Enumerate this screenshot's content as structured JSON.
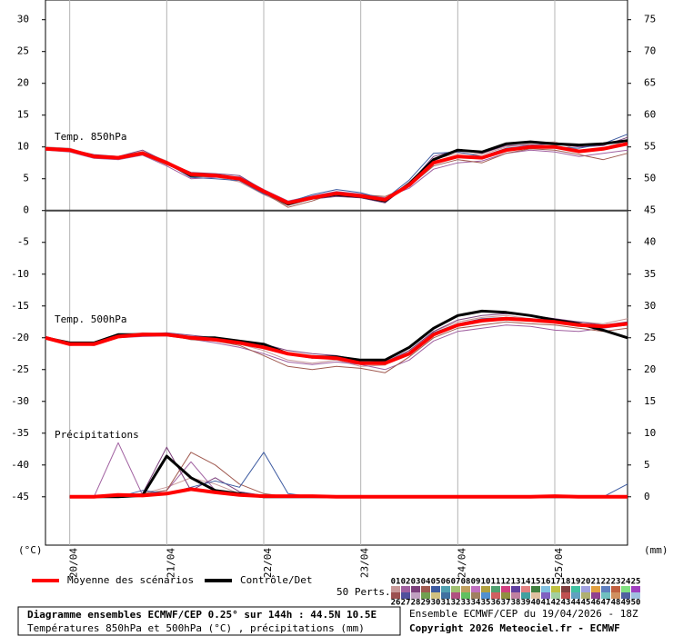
{
  "chart_data": {
    "type": "line",
    "title": "Diagramme ensembles ECMWF/CEP 0.25° sur 144h : 44.5N 10.5E",
    "subtitle": "Températures 850hPa et 500hPa (°C) , précipitations (mm)",
    "source": "Ensemble ECMWF/CEP du 19/04/2026 - 18Z",
    "copyright": "Copyright 2026 Meteociel.fr - ECMWF",
    "y_label": "(°C)",
    "y2_label": "(mm)",
    "x": [
      -0.25,
      0,
      0.25,
      0.5,
      0.75,
      1,
      1.25,
      1.5,
      1.75,
      2,
      2.25,
      2.5,
      2.75,
      3,
      3.25,
      3.5,
      3.75,
      4,
      4.25,
      4.5,
      4.75,
      5,
      5.25,
      5.5,
      5.75
    ],
    "xlim": [
      -0.25,
      5.75
    ],
    "xticks": [
      {
        "value": 0,
        "label": "20/04"
      },
      {
        "value": 1,
        "label": "21/04"
      },
      {
        "value": 2,
        "label": "22/04"
      },
      {
        "value": 3,
        "label": "23/04"
      },
      {
        "value": 4,
        "label": "24/04"
      },
      {
        "value": 5,
        "label": "25/04"
      }
    ],
    "ylim": [
      -52.6,
      33.1
    ],
    "yticks": [
      30,
      25,
      20,
      15,
      10,
      5,
      0,
      -5,
      -10,
      -15,
      -20,
      -25,
      -30,
      -35,
      -40,
      -45
    ],
    "y2lim": [
      -7.6,
      78.1
    ],
    "y2ticks": [
      75,
      70,
      65,
      60,
      55,
      50,
      45,
      40,
      35,
      30,
      25,
      20,
      15,
      10,
      5,
      0
    ],
    "xgrid": true,
    "legend": [
      {
        "name": "Moyenne des scénarios",
        "color": "#ff0000"
      },
      {
        "name": "Contrôle/Det",
        "color": "#000000"
      }
    ],
    "members_label": "50 Perts.",
    "members": [
      {
        "name": "01",
        "color": "#c89898"
      },
      {
        "name": "02",
        "color": "#a060a0"
      },
      {
        "name": "03",
        "color": "#7b3f7b"
      },
      {
        "name": "04",
        "color": "#a05a50"
      },
      {
        "name": "05",
        "color": "#3c5aa0"
      },
      {
        "name": "06",
        "color": "#50a0b0"
      },
      {
        "name": "07",
        "color": "#a0c070"
      },
      {
        "name": "08",
        "color": "#c0a060"
      },
      {
        "name": "09",
        "color": "#c070c0"
      },
      {
        "name": "10",
        "color": "#b0a040"
      },
      {
        "name": "11",
        "color": "#50a070"
      },
      {
        "name": "12",
        "color": "#d04080"
      },
      {
        "name": "13",
        "color": "#6040a0"
      },
      {
        "name": "14",
        "color": "#e08080"
      },
      {
        "name": "15",
        "color": "#408040"
      },
      {
        "name": "16",
        "color": "#80c0e0"
      },
      {
        "name": "17",
        "color": "#c0c040"
      },
      {
        "name": "18",
        "color": "#804040"
      },
      {
        "name": "19",
        "color": "#40c0a0"
      },
      {
        "name": "20",
        "color": "#a0a0e0"
      },
      {
        "name": "21",
        "color": "#e0a040"
      },
      {
        "name": "22",
        "color": "#6080c0"
      },
      {
        "name": "23",
        "color": "#c06040"
      },
      {
        "name": "24",
        "color": "#80e080"
      },
      {
        "name": "25",
        "color": "#a040c0"
      },
      {
        "name": "26",
        "color": "#9c5050"
      },
      {
        "name": "27",
        "color": "#50509c"
      },
      {
        "name": "28",
        "color": "#c0a0c0"
      },
      {
        "name": "29",
        "color": "#70a050"
      },
      {
        "name": "30",
        "color": "#d0c080"
      },
      {
        "name": "31",
        "color": "#4070a0"
      },
      {
        "name": "32",
        "color": "#b05080"
      },
      {
        "name": "33",
        "color": "#60c060"
      },
      {
        "name": "34",
        "color": "#a08060"
      },
      {
        "name": "35",
        "color": "#5090d0"
      },
      {
        "name": "36",
        "color": "#d06060"
      },
      {
        "name": "37",
        "color": "#909040"
      },
      {
        "name": "38",
        "color": "#c080a0"
      },
      {
        "name": "39",
        "color": "#40a0a0"
      },
      {
        "name": "40",
        "color": "#e0c0a0"
      },
      {
        "name": "41",
        "color": "#8060c0"
      },
      {
        "name": "42",
        "color": "#a0d0a0"
      },
      {
        "name": "43",
        "color": "#c05050"
      },
      {
        "name": "44",
        "color": "#60a0c0"
      },
      {
        "name": "45",
        "color": "#b0b070"
      },
      {
        "name": "46",
        "color": "#904090"
      },
      {
        "name": "47",
        "color": "#70c0c0"
      },
      {
        "name": "48",
        "color": "#d09060"
      },
      {
        "name": "49",
        "color": "#5060a0"
      },
      {
        "name": "50",
        "color": "#a0c0e0"
      }
    ],
    "panels": [
      {
        "label": "Temp. 850hPa",
        "axis": "y",
        "mean": [
          9.7,
          9.5,
          8.5,
          8.3,
          9,
          7.5,
          5.7,
          5.5,
          5,
          3,
          1.2,
          2,
          2.7,
          2.3,
          1.7,
          4,
          7.5,
          8.5,
          8.3,
          9.5,
          10,
          10,
          9.3,
          9.7,
          10.5
        ],
        "control": [
          9.7,
          9.5,
          8.5,
          8.3,
          9,
          7.5,
          5.5,
          5.5,
          5,
          3,
          1,
          2,
          2.5,
          2.2,
          1.5,
          4.2,
          8,
          9.5,
          9.2,
          10.5,
          10.8,
          10.5,
          10.3,
          10.5,
          11
        ],
        "perturbations": [
          [
            10,
            9.8,
            8.6,
            8.5,
            9.3,
            7.8,
            5.5,
            5.3,
            4.5,
            2.5,
            0.8,
            1.8,
            2.5,
            2,
            1.5,
            4.5,
            8,
            9,
            8.8,
            10,
            10.5,
            10.8,
            9.5,
            9.8,
            11
          ],
          [
            9.5,
            9.2,
            8.2,
            8,
            8.7,
            7,
            5,
            5.2,
            5.3,
            3.3,
            1.5,
            2.3,
            3,
            2.6,
            2,
            3.5,
            6.5,
            7.5,
            7.8,
            9,
            9.5,
            9.2,
            8.5,
            9,
            9.5
          ],
          [
            9.8,
            9.6,
            8.8,
            8.5,
            9.5,
            7.6,
            6,
            5.8,
            5.5,
            3.2,
            1,
            1.8,
            2.2,
            2,
            1.2,
            4.2,
            8.5,
            9.5,
            9,
            10.2,
            10.3,
            10.5,
            10,
            10.2,
            11.5
          ],
          [
            9.6,
            9.3,
            8.4,
            8.1,
            8.8,
            7.2,
            5.8,
            5.5,
            4.8,
            2.8,
            0.5,
            1.5,
            2.8,
            2.5,
            2.2,
            3.8,
            7,
            8,
            7.5,
            9,
            9.7,
            9.5,
            8.8,
            8,
            9
          ],
          [
            9.9,
            9.7,
            8.5,
            8.4,
            9.1,
            7.5,
            5.2,
            5,
            4.7,
            2.6,
            1.3,
            2.5,
            3.3,
            2.8,
            1.8,
            4.8,
            9,
            9.2,
            8.5,
            9.8,
            10.2,
            10,
            9.8,
            10.5,
            12
          ]
        ]
      },
      {
        "label": "Temp. 500hPa",
        "axis": "y",
        "mean": [
          -20,
          -21,
          -21,
          -19.8,
          -19.5,
          -19.5,
          -20,
          -20.3,
          -20.8,
          -21.5,
          -22.5,
          -23,
          -23.2,
          -24,
          -24,
          -22.5,
          -19.5,
          -18,
          -17.3,
          -17,
          -17.2,
          -17.5,
          -18,
          -18.2,
          -17.8
        ],
        "control": [
          -20,
          -20.8,
          -20.8,
          -19.5,
          -19.5,
          -19.5,
          -20,
          -20,
          -20.5,
          -21,
          -22.5,
          -23,
          -23,
          -23.5,
          -23.5,
          -21.5,
          -18.5,
          -16.5,
          -15.8,
          -16,
          -16.5,
          -17.2,
          -17.8,
          -18.8,
          -20
        ],
        "perturbations": [
          [
            -20,
            -21.2,
            -21,
            -19.6,
            -19.2,
            -19.3,
            -19.8,
            -20,
            -21,
            -22,
            -23.5,
            -24,
            -23.5,
            -24.5,
            -24.3,
            -22,
            -19,
            -17.5,
            -16.8,
            -16.5,
            -17,
            -17.2,
            -17.5,
            -17.8,
            -17
          ],
          [
            -20.2,
            -21,
            -21.2,
            -20,
            -19.8,
            -19.7,
            -20.2,
            -20.8,
            -21.5,
            -22.5,
            -23.8,
            -24.2,
            -23.8,
            -24.2,
            -25,
            -23.5,
            -20.5,
            -19,
            -18.5,
            -18,
            -18.2,
            -18.8,
            -19,
            -18.5,
            -18
          ],
          [
            -19.8,
            -20.8,
            -20.9,
            -19.7,
            -19.4,
            -19.2,
            -19.6,
            -20,
            -20.4,
            -21,
            -22,
            -22.5,
            -22.8,
            -23.5,
            -23.8,
            -22,
            -19,
            -17.2,
            -16.5,
            -16.2,
            -16.5,
            -17,
            -17.5,
            -18,
            -17.5
          ],
          [
            -20.1,
            -21.1,
            -21,
            -19.9,
            -19.6,
            -19.5,
            -20.3,
            -20.5,
            -21.2,
            -22.8,
            -24.5,
            -25,
            -24.5,
            -24.8,
            -25.5,
            -23,
            -20,
            -18.5,
            -18,
            -17.5,
            -17.8,
            -18,
            -18.5,
            -19,
            -18.5
          ],
          [
            -20,
            -20.9,
            -20.8,
            -19.6,
            -19.5,
            -19.4,
            -19.9,
            -20.2,
            -20.6,
            -21.4,
            -22.6,
            -23.2,
            -23,
            -23.8,
            -24,
            -22.3,
            -19.2,
            -17.8,
            -17,
            -16.8,
            -17,
            -17.3,
            -18,
            -18.2,
            -17.6
          ]
        ]
      },
      {
        "label": "Précipitations",
        "axis": "y2",
        "mean": [
          null,
          0,
          0,
          0.3,
          0.2,
          0.5,
          1.2,
          0.7,
          0.3,
          0.1,
          0.1,
          0.1,
          0,
          0,
          0,
          0,
          0,
          0,
          0,
          0,
          0,
          0.1,
          0,
          0,
          0
        ],
        "control": [
          null,
          0,
          0,
          0,
          0.2,
          6.4,
          3,
          1,
          0.5,
          0,
          0,
          0,
          0,
          0,
          0,
          0,
          0,
          0,
          0,
          0,
          0,
          0,
          0,
          0,
          0
        ],
        "perturbations": [
          [
            null,
            0,
            0,
            0.3,
            0.5,
            1.5,
            3,
            2,
            0.5,
            0.2,
            0,
            0,
            0,
            0,
            0,
            0,
            0,
            0,
            0,
            0,
            0,
            0,
            0,
            0,
            0
          ],
          [
            null,
            0,
            0,
            8.5,
            0.3,
            1,
            5.5,
            1,
            0.5,
            0.3,
            0,
            0,
            0,
            0,
            0,
            0,
            0,
            0,
            0,
            0,
            0,
            0,
            0,
            0,
            0
          ],
          [
            null,
            0,
            0,
            0,
            0.5,
            7.8,
            1,
            3,
            0.8,
            0.2,
            0.1,
            0,
            0,
            0,
            0,
            0,
            0,
            0,
            0,
            0,
            0,
            0,
            0,
            0,
            0
          ],
          [
            null,
            0,
            0,
            0.2,
            0.5,
            1,
            7,
            5,
            2,
            0.5,
            0,
            0,
            0,
            0,
            0,
            0,
            0,
            0,
            0,
            0,
            0,
            0,
            0,
            0,
            0
          ],
          [
            null,
            0,
            0,
            0,
            1,
            0.5,
            1.5,
            2.5,
            1.5,
            7,
            0.5,
            0,
            0,
            0,
            0,
            0,
            0,
            0,
            0,
            0,
            0,
            0,
            0,
            0,
            2
          ]
        ]
      }
    ]
  }
}
